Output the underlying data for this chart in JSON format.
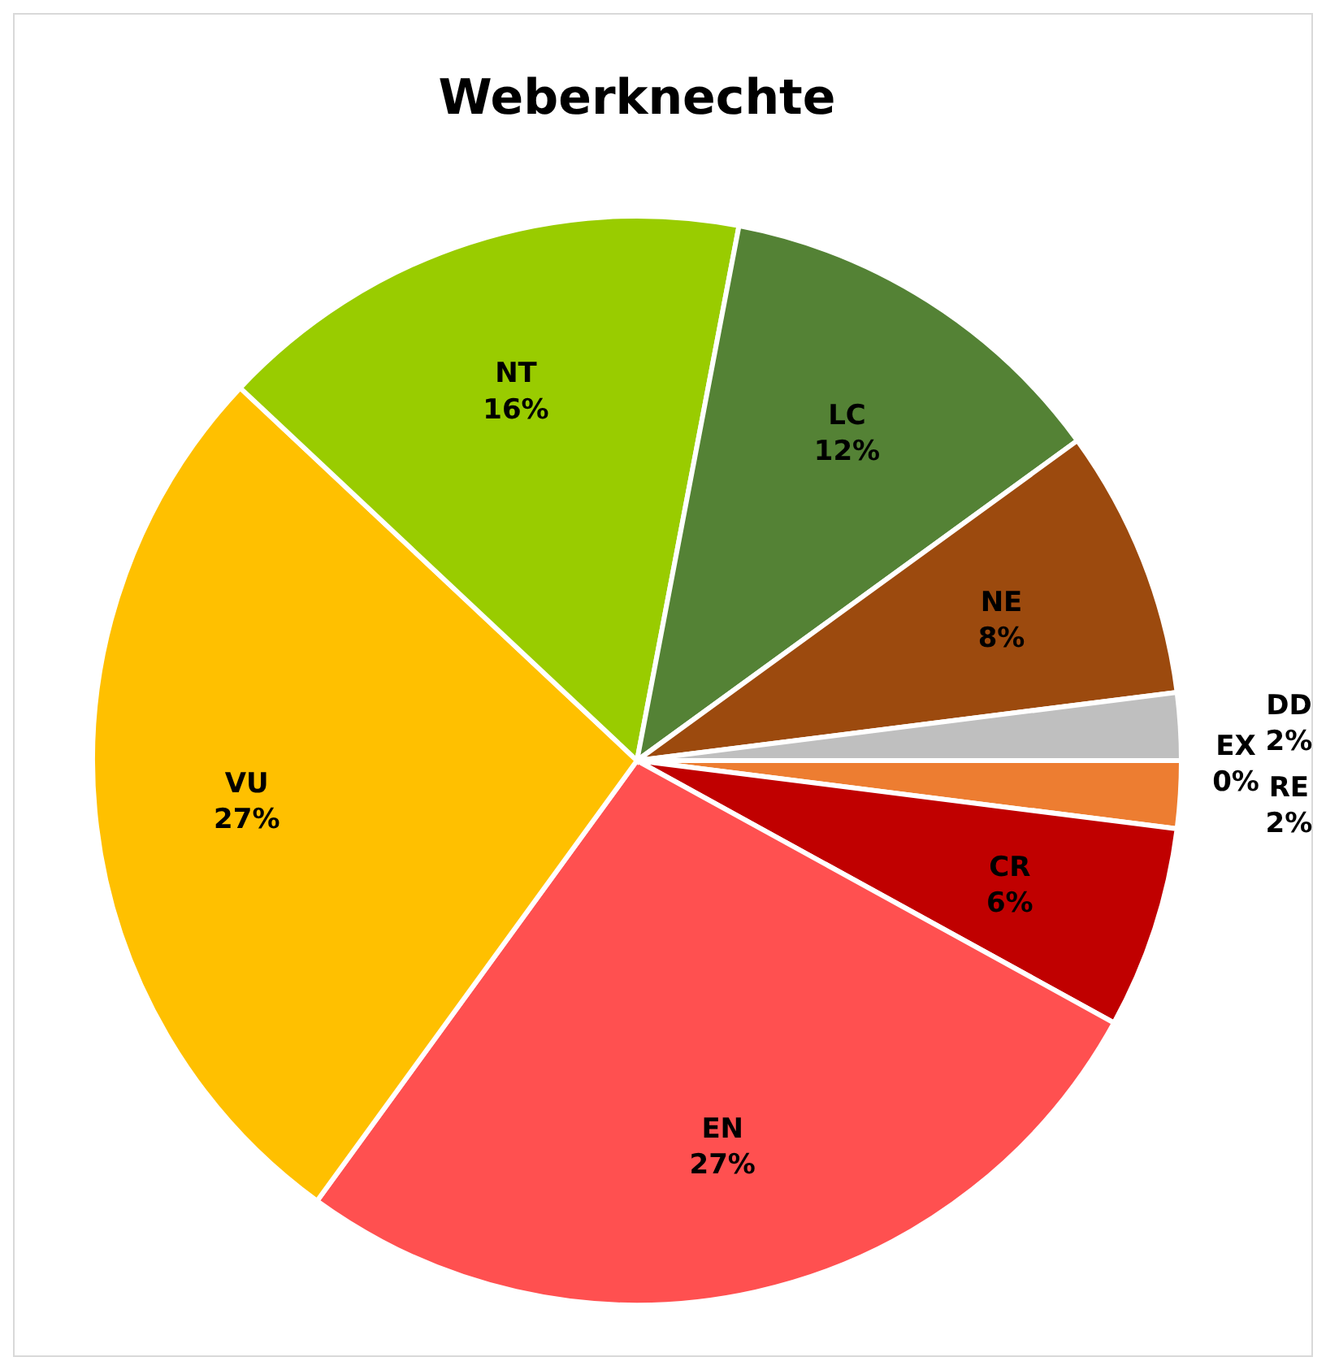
{
  "chart_data": {
    "type": "pie",
    "title": "Weberknechte",
    "categories": [
      "EX",
      "RE",
      "CR",
      "EN",
      "VU",
      "NT",
      "LC",
      "NE",
      "DD"
    ],
    "values": [
      0,
      2,
      6,
      27,
      27,
      16,
      12,
      8,
      2
    ],
    "colors": [
      "#7f7f7f",
      "#ed7d31",
      "#c00000",
      "#ff5050",
      "#ffc000",
      "#99cc00",
      "#548235",
      "#9c4a0e",
      "#bfbfbf"
    ],
    "value_labels": [
      "0%",
      "2%",
      "6%",
      "27%",
      "27%",
      "16%",
      "12%",
      "8%",
      "2%"
    ]
  }
}
